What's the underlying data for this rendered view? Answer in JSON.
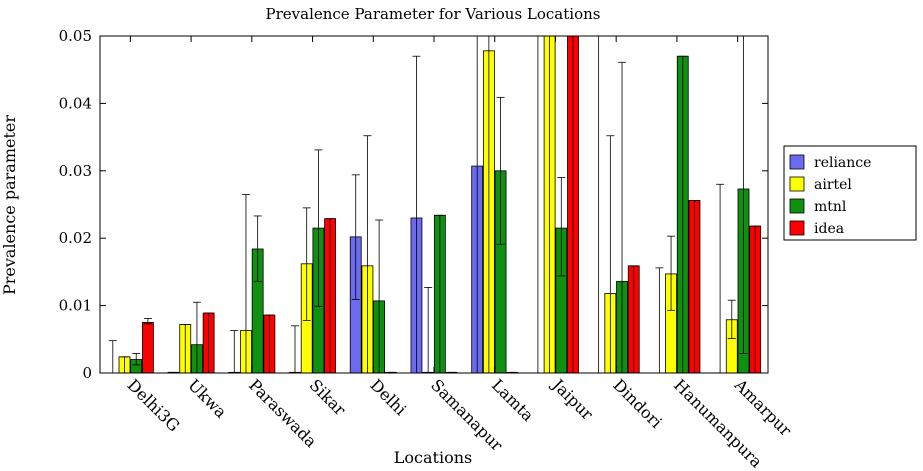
{
  "chart_data": {
    "type": "bar",
    "title": "Prevalence Parameter for Various Locations",
    "xlabel": "Locations",
    "ylabel": "Prevalence parameter",
    "ylim": [
      0,
      0.05
    ],
    "yticks": [
      "0",
      "0.01",
      "0.02",
      "0.03",
      "0.04",
      "0.05"
    ],
    "legend_position": "right",
    "error_bars": true,
    "categories": [
      "Delhi3G",
      "Ukwa",
      "Paraswada",
      "Sikar",
      "Delhi",
      "Samanapur",
      "Lamta",
      "Jaipur",
      "Dindori",
      "Hanumanpura",
      "Amarpur"
    ],
    "series": [
      {
        "name": "reliance",
        "color": "#6b6bef",
        "values": [
          0,
          0.0001,
          0.0001,
          0.0001,
          0.0202,
          0.023,
          0.0307,
          0,
          0,
          0,
          0
        ],
        "err_low": [
          0,
          0,
          0,
          0,
          0.0109,
          0,
          0,
          0,
          0,
          0,
          0
        ],
        "err_high": [
          0.0048,
          0.0001,
          0.0063,
          0.007,
          0.0294,
          0.047,
          0.05,
          0.05,
          0.05,
          0.0156,
          0.028
        ]
      },
      {
        "name": "airtel",
        "color": "#ffff00",
        "values": [
          0.0024,
          0.0072,
          0.0063,
          0.0162,
          0.0159,
          0.0001,
          0.0478,
          0.05,
          0.0118,
          0.0147,
          0.0079
        ],
        "err_low": [
          0,
          0,
          0,
          0.0078,
          0,
          0,
          0,
          0,
          0,
          0.0093,
          0.0051
        ],
        "err_high": [
          0.0024,
          0.0072,
          0.0265,
          0.0245,
          0.0352,
          0.0127,
          0.05,
          0.05,
          0.0352,
          0.0203,
          0.0108
        ]
      },
      {
        "name": "mtnl",
        "color": "#109010",
        "values": [
          0.002,
          0.0042,
          0.0184,
          0.0215,
          0.0107,
          0.0234,
          0.03,
          0.0215,
          0.0136,
          0.047,
          0.0273
        ],
        "err_low": [
          0.0012,
          0,
          0.0136,
          0.0099,
          0,
          0,
          0.0191,
          0.0144,
          0,
          0,
          0.0029
        ],
        "err_high": [
          0.0029,
          0.0105,
          0.0233,
          0.0331,
          0.0227,
          0.0234,
          0.0409,
          0.029,
          0.0461,
          0.047,
          0.05
        ]
      },
      {
        "name": "idea",
        "color": "#ff0000",
        "values": [
          0.0075,
          0.0089,
          0.0086,
          0.0229,
          0.0001,
          0.0001,
          0.0001,
          0.05,
          0.0159,
          0.0256,
          0.0218
        ],
        "err_low": [
          0.0073,
          0,
          0,
          0,
          0,
          0,
          0,
          0,
          0,
          0,
          0
        ],
        "err_high": [
          0.0081,
          0.0089,
          0.0086,
          0.0229,
          0.0001,
          0.0001,
          0.0001,
          0.05,
          0.0159,
          0.0256,
          0.0218
        ]
      }
    ]
  }
}
